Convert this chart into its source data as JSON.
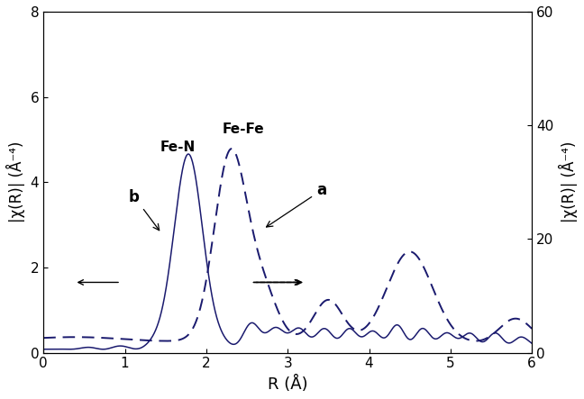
{
  "xlabel": "R (Å)",
  "ylabel_left": "|χ(R)| (Å⁻⁴)",
  "ylabel_right": "|χ(R)| (Å⁻⁴)",
  "xlim": [
    0,
    6
  ],
  "ylim_left": [
    0,
    8
  ],
  "ylim_right": [
    0,
    60
  ],
  "xticks": [
    0,
    1,
    2,
    3,
    4,
    5,
    6
  ],
  "yticks_left": [
    0,
    2,
    4,
    6,
    8
  ],
  "yticks_right": [
    0,
    20,
    40,
    60
  ],
  "line_color": "#1a1a6e",
  "background_color": "#ffffff",
  "annotation_a": "a",
  "annotation_b": "b",
  "annotation_fen": "Fe-N",
  "annotation_fefe": "Fe-Fe"
}
